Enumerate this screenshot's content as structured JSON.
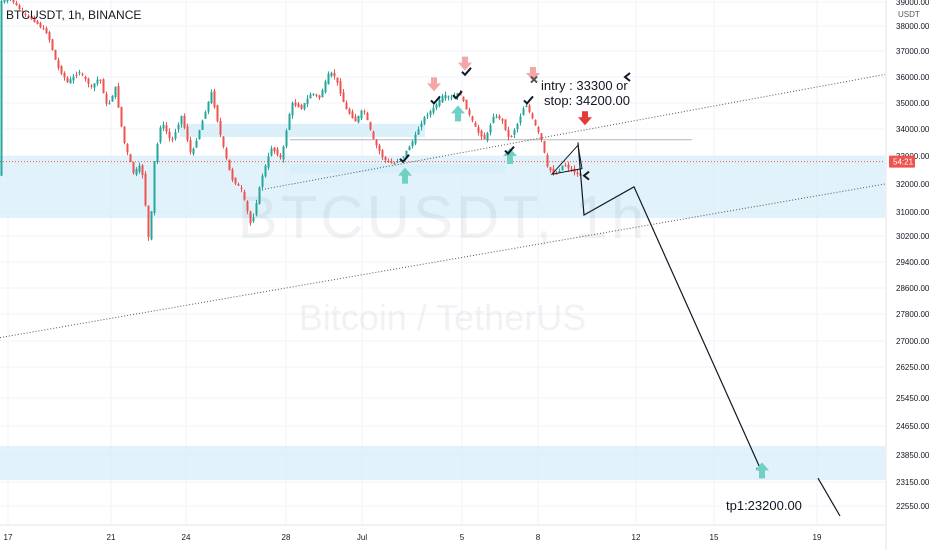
{
  "header": {
    "symbol": "BTCUSDT, 1h, BINANCE",
    "currency": "USDT"
  },
  "watermark": {
    "ticker": "BTCUSDT, 1h",
    "name": "Bitcoin / TetherUS"
  },
  "annotations": {
    "entry": "intry : 33300 or",
    "stop": "stop: 34200.00",
    "target": "tp1:23200.00"
  },
  "price_tag": "54:21",
  "colors": {
    "up": "#26a69a",
    "down": "#ef5350",
    "zone": "#d7eef8",
    "current": "#ef5350"
  },
  "chart_data": {
    "type": "candlestick",
    "x_ticks": [
      "17",
      "21",
      "24",
      "28",
      "Jul",
      "5",
      "8",
      "12",
      "15",
      "19"
    ],
    "y_ticks": [
      "39000.00",
      "38000.00",
      "37000.00",
      "36000.00",
      "35000.00",
      "34000.00",
      "33000.00",
      "32000.00",
      "31000.00",
      "30200.00",
      "29400.00",
      "28600.00",
      "27800.00",
      "27000.00",
      "26250.00",
      "25450.00",
      "24650.00",
      "23850.00",
      "23150.00",
      "22550.00"
    ],
    "ylim": [
      22300,
      39300
    ],
    "series": [
      {
        "name": "BTCUSDT",
        "path": [
          [
            0,
            39000
          ],
          [
            10,
            39200
          ],
          [
            22,
            38600
          ],
          [
            35,
            38200
          ],
          [
            48,
            37700
          ],
          [
            58,
            36400
          ],
          [
            68,
            35800
          ],
          [
            80,
            36200
          ],
          [
            92,
            35600
          ],
          [
            100,
            36000
          ],
          [
            108,
            34800
          ],
          [
            116,
            35600
          ],
          [
            124,
            33600
          ],
          [
            134,
            32400
          ],
          [
            142,
            32700
          ],
          [
            150,
            29800
          ],
          [
            155,
            32800
          ],
          [
            162,
            34300
          ],
          [
            172,
            33500
          ],
          [
            182,
            34500
          ],
          [
            192,
            33000
          ],
          [
            202,
            34200
          ],
          [
            212,
            35400
          ],
          [
            222,
            33600
          ],
          [
            232,
            32200
          ],
          [
            242,
            31800
          ],
          [
            252,
            30500
          ],
          [
            262,
            32200
          ],
          [
            272,
            33300
          ],
          [
            282,
            32900
          ],
          [
            292,
            35000
          ],
          [
            302,
            34800
          ],
          [
            312,
            35400
          ],
          [
            320,
            35200
          ],
          [
            330,
            36200
          ],
          [
            336,
            36000
          ],
          [
            346,
            34800
          ],
          [
            356,
            34300
          ],
          [
            364,
            34800
          ],
          [
            374,
            33600
          ],
          [
            384,
            32900
          ],
          [
            394,
            32700
          ],
          [
            404,
            33000
          ],
          [
            414,
            33600
          ],
          [
            424,
            34400
          ],
          [
            434,
            34800
          ],
          [
            444,
            35300
          ],
          [
            452,
            35200
          ],
          [
            460,
            35400
          ],
          [
            468,
            34700
          ],
          [
            478,
            33900
          ],
          [
            486,
            33600
          ],
          [
            494,
            34500
          ],
          [
            502,
            34400
          ],
          [
            510,
            33600
          ],
          [
            518,
            34200
          ],
          [
            526,
            35000
          ],
          [
            534,
            34300
          ],
          [
            542,
            33600
          ],
          [
            548,
            32600
          ],
          [
            556,
            32300
          ],
          [
            564,
            32700
          ],
          [
            572,
            32500
          ],
          [
            580,
            32300
          ]
        ]
      }
    ],
    "zones": [
      [
        33700,
        34200
      ],
      [
        32400,
        32700
      ],
      [
        30800,
        33000
      ],
      [
        23200,
        24100
      ]
    ],
    "levels": {
      "current_price": 32800,
      "resistance": 33600,
      "top": 39250
    },
    "trendlines": [
      {
        "points": [
          [
            262,
            31800
          ],
          [
            885,
            36100
          ]
        ],
        "style": "dotted"
      },
      {
        "points": [
          [
            0,
            27100
          ],
          [
            885,
            32000
          ]
        ],
        "style": "dotted"
      }
    ],
    "projection": [
      [
        578,
        33500
      ],
      [
        584,
        30900
      ],
      [
        634,
        31900
      ],
      [
        762,
        23400
      ]
    ],
    "projection2": [
      [
        818,
        23250
      ],
      [
        840,
        22300
      ]
    ],
    "triangle": [
      [
        552,
        32350
      ],
      [
        578,
        33400
      ],
      [
        582,
        32550
      ]
    ],
    "markers": {
      "pink_down": [
        [
          434,
          35600
        ],
        [
          465,
          36400
        ],
        [
          533,
          36000
        ],
        [
          585,
          34300
        ]
      ],
      "teal_up": [
        [
          405,
          32300
        ],
        [
          458,
          34600
        ],
        [
          510,
          33000
        ],
        [
          762,
          23450
        ]
      ],
      "checks": [
        [
          404,
          32900
        ],
        [
          435,
          35100
        ],
        [
          466,
          36200
        ],
        [
          457,
          35300
        ],
        [
          509,
          33200
        ],
        [
          528,
          35100
        ]
      ],
      "cross": [
        [
          534,
          35900
        ]
      ],
      "arrows_left": [
        [
          627,
          36000
        ],
        [
          586,
          32300
        ]
      ]
    }
  }
}
